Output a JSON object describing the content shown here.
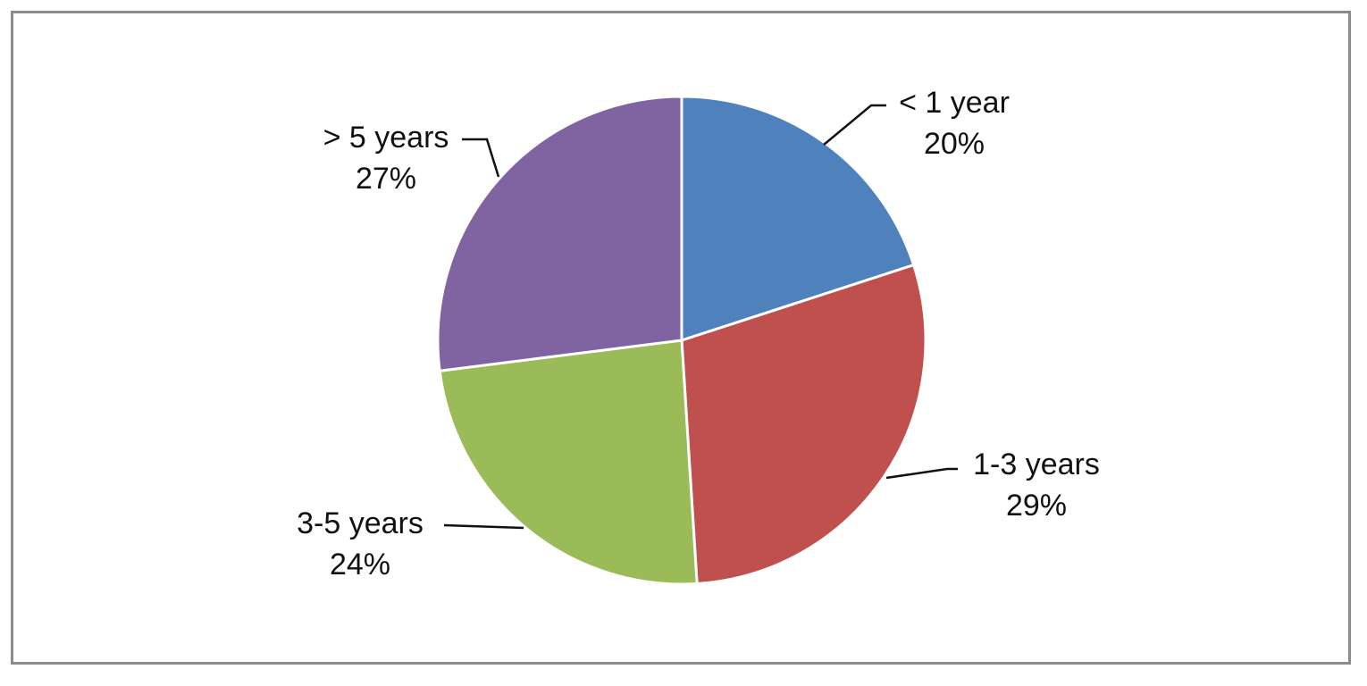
{
  "chart_data": {
    "type": "pie",
    "start_angle_deg": 0,
    "direction": "clockwise",
    "slices": [
      {
        "label": "< 1 year",
        "value": 20,
        "value_label": "20%",
        "color": "#4F81BD"
      },
      {
        "label": "1-3 years",
        "value": 29,
        "value_label": "29%",
        "color": "#C0504D"
      },
      {
        "label": "3-5 years",
        "value": 24,
        "value_label": "24%",
        "color": "#9BBB59"
      },
      {
        "label": "> 5 years",
        "value": 27,
        "value_label": "27%",
        "color": "#8064A2"
      }
    ],
    "legend": "none"
  }
}
